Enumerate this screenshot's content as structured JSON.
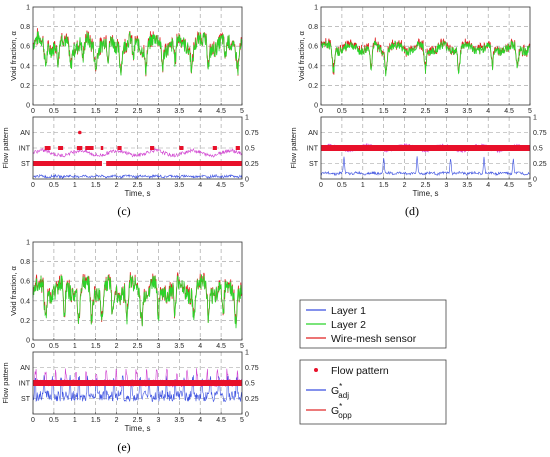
{
  "colors": {
    "layer1": "#3a4fe0",
    "layer2": "#2bd42b",
    "wms": "#e02020",
    "flow_pattern": "#e8102a",
    "g_adj": "#3a4fe0",
    "g_opp": "#e02a2a",
    "opp_signal": "#d040d0",
    "grid": "#9a9a9a"
  },
  "legend_top": {
    "items": [
      {
        "label": "Layer 1",
        "color": "#3a4fe0",
        "kind": "line"
      },
      {
        "label": "Layer 2",
        "color": "#2bd42b",
        "kind": "line"
      },
      {
        "label": "Wire-mesh sensor",
        "color": "#e02020",
        "kind": "line"
      }
    ]
  },
  "legend_bottom": {
    "items": [
      {
        "label": "Flow pattern",
        "color": "#e8102a",
        "kind": "dot"
      },
      {
        "label": "G",
        "sup": "*",
        "sub": "adj",
        "color": "#3a4fe0",
        "kind": "line"
      },
      {
        "label": "G",
        "sup": "*",
        "sub": "opp",
        "color": "#e02a2a",
        "kind": "line"
      }
    ]
  },
  "chart_data": [
    {
      "panel": "c-void",
      "type": "line",
      "ylabel": "Void fraction, α",
      "xlim": [
        0,
        5
      ],
      "ylim": [
        0,
        1
      ],
      "xticks": [
        "0",
        "0.5",
        "1",
        "1.5",
        "2",
        "2.5",
        "3",
        "3.5",
        "4",
        "4.5",
        "5"
      ],
      "yticks": [
        "0",
        "0.2",
        "0.4",
        "0.6",
        "0.8",
        "1"
      ],
      "grid": true,
      "series": [
        {
          "name": "Layer 2",
          "mean": 0.62,
          "amp": 0.14,
          "dips": [
            0.3,
            0.6,
            0.9,
            1.2,
            1.5,
            1.8,
            2.1,
            2.4,
            2.7,
            3.1,
            3.4,
            3.8,
            4.2,
            4.6,
            4.9
          ],
          "dip_depth": 0.2
        },
        {
          "name": "Wire-mesh sensor",
          "mean": 0.62,
          "amp": 0.12
        }
      ]
    },
    {
      "panel": "c-pattern",
      "type": "scatter",
      "ylabel": "Flow pattern",
      "xlabel": "Time, s",
      "xlim": [
        0,
        5
      ],
      "ylim": [
        0,
        1
      ],
      "xticks": [
        "0",
        "0.5",
        "1",
        "1.5",
        "2",
        "2.5",
        "3",
        "3.5",
        "4",
        "4.5",
        "5"
      ],
      "left_ticks": [
        {
          "label": "AN",
          "value": 0.75
        },
        {
          "label": "INT",
          "value": 0.5
        },
        {
          "label": "ST",
          "value": 0.25
        }
      ],
      "right_ticks": [
        "0",
        "0.25",
        "0.5",
        "0.75",
        "1"
      ],
      "pattern_st_segments": [
        [
          0,
          1.65
        ],
        [
          1.75,
          5
        ]
      ],
      "pattern_int_segments": [
        [
          0.28,
          0.42
        ],
        [
          0.6,
          0.72
        ],
        [
          1.05,
          1.18
        ],
        [
          1.25,
          1.45
        ],
        [
          1.62,
          1.68
        ],
        [
          2.02,
          2.12
        ],
        [
          2.8,
          2.9
        ],
        [
          3.5,
          3.6
        ],
        [
          4.3,
          4.4
        ],
        [
          4.85,
          4.95
        ]
      ],
      "pattern_an_points": [
        1.12
      ],
      "g_adj_mean": 0.03,
      "g_opp_mean": 0.42
    },
    {
      "panel": "d-void",
      "type": "line",
      "ylabel": "Void fraction, α",
      "xlim": [
        0,
        5
      ],
      "ylim": [
        0,
        1
      ],
      "xticks": [
        "0",
        "0.5",
        "1",
        "1.5",
        "2",
        "2.5",
        "3",
        "3.5",
        "4",
        "4.5",
        "5"
      ],
      "yticks": [
        "0",
        "0.2",
        "0.4",
        "0.6",
        "0.8",
        "1"
      ],
      "grid": true,
      "series": [
        {
          "name": "Layer 2",
          "mean": 0.58,
          "amp": 0.08,
          "dips": [
            0.3,
            1.2,
            1.55,
            2.5,
            3.3,
            4.1,
            4.7
          ],
          "dip_depth": 0.22
        },
        {
          "name": "Wire-mesh sensor",
          "mean": 0.6,
          "amp": 0.07
        }
      ]
    },
    {
      "panel": "d-pattern",
      "type": "scatter",
      "ylabel": "Flow pattern",
      "xlabel": "Time, s",
      "xlim": [
        0,
        5
      ],
      "ylim": [
        0,
        1
      ],
      "xticks": [
        "0",
        "0.5",
        "1",
        "1.5",
        "2",
        "2.5",
        "3",
        "3.5",
        "4",
        "4.5",
        "5"
      ],
      "left_ticks": [
        {
          "label": "AN",
          "value": 0.75
        },
        {
          "label": "INT",
          "value": 0.5
        },
        {
          "label": "ST",
          "value": 0.25
        }
      ],
      "right_ticks": [
        "0",
        "0.25",
        "0.5",
        "0.75",
        "1"
      ],
      "pattern_int_segments": [
        [
          0,
          5
        ]
      ],
      "g_adj_mean": 0.08,
      "g_opp_mean": 0.5,
      "g_adj_peaks": [
        0.55,
        1.5,
        2.3,
        3.1,
        3.9,
        4.6
      ]
    },
    {
      "panel": "e-void",
      "type": "line",
      "ylabel": "Void fraction, α",
      "xlim": [
        0,
        5
      ],
      "ylim": [
        0,
        1
      ],
      "xticks": [
        "0",
        "0.5",
        "1",
        "1.5",
        "2",
        "2.5",
        "3",
        "3.5",
        "4",
        "4.5",
        "5"
      ],
      "yticks": [
        "0",
        "0.2",
        "0.4",
        "0.6",
        "0.8",
        "1"
      ],
      "grid": true,
      "series": [
        {
          "name": "Layer 2",
          "mean": 0.52,
          "amp": 0.16,
          "dips": [
            0.3,
            0.75,
            1.1,
            1.4,
            1.65,
            1.9,
            2.25,
            2.6,
            3.0,
            3.4,
            3.85,
            4.2,
            4.55,
            4.85
          ],
          "dip_depth": 0.3
        },
        {
          "name": "Wire-mesh sensor",
          "mean": 0.55,
          "amp": 0.15
        }
      ]
    },
    {
      "panel": "e-pattern",
      "type": "scatter",
      "ylabel": "Flow pattern",
      "xlabel": "Time, s",
      "xlim": [
        0,
        5
      ],
      "ylim": [
        0,
        1
      ],
      "xticks": [
        "0",
        "0.5",
        "1",
        "1.5",
        "2",
        "2.5",
        "3",
        "3.5",
        "4",
        "4.5",
        "5"
      ],
      "left_ticks": [
        {
          "label": "AN",
          "value": 0.75
        },
        {
          "label": "INT",
          "value": 0.5
        },
        {
          "label": "ST",
          "value": 0.25
        }
      ],
      "right_ticks": [
        "0",
        "0.25",
        "0.5",
        "0.75",
        "1"
      ],
      "pattern_int_segments": [
        [
          0,
          5
        ]
      ],
      "g_adj_mean": 0.25,
      "g_opp_mean": 0.5
    }
  ],
  "captions": [
    "(c)",
    "(d)",
    "(e)"
  ]
}
